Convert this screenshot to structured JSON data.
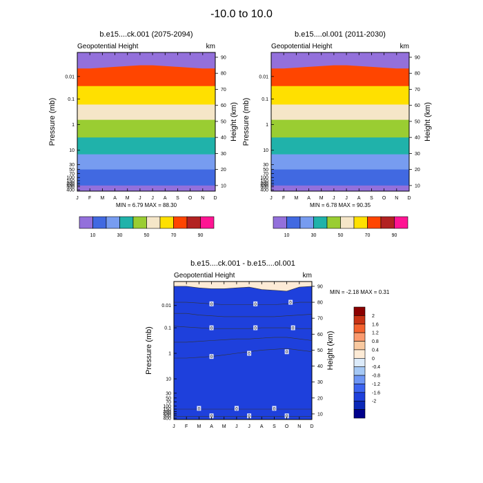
{
  "page_title": "-10.0 to  10.0",
  "chart_data": [
    {
      "type": "contour",
      "title": "b.e15....ck.001 (2075-2094)",
      "subtitle_left": "Geopotential Height",
      "subtitle_right": "km",
      "xlabel": "",
      "ylabel": "Pressure (mb)",
      "ylabel_right": "Height (km)",
      "x_tick_labels": [
        "J",
        "F",
        "M",
        "A",
        "M",
        "J",
        "J",
        "A",
        "S",
        "O",
        "N",
        "D"
      ],
      "y_ticks_pressure": [
        {
          "p": "0.01",
          "z": 78
        },
        {
          "p": "0.1",
          "z": 64
        },
        {
          "p": "1",
          "z": 48
        },
        {
          "p": "10",
          "z": 32
        },
        {
          "p": "30",
          "z": 23
        },
        {
          "p": "50",
          "z": 20
        },
        {
          "p": "70",
          "z": 17.5
        },
        {
          "p": "100",
          "z": 15
        },
        {
          "p": "150",
          "z": 13
        },
        {
          "p": "200",
          "z": 11.5
        },
        {
          "p": "250",
          "z": 10.3
        },
        {
          "p": "300",
          "z": 9.2
        },
        {
          "p": "400",
          "z": 7.3
        }
      ],
      "y_ticks_height": [
        10,
        20,
        30,
        40,
        50,
        60,
        70,
        80,
        90
      ],
      "ylim_km": [
        6.5,
        93
      ],
      "levels": [
        10,
        20,
        30,
        40,
        50,
        60,
        70,
        80,
        90
      ],
      "colors": [
        "#9370DB",
        "#4169E1",
        "#779CF0",
        "#20B2AA",
        "#9ACD32",
        "#F5E6C8",
        "#FFE000",
        "#FF4500",
        "#B22222",
        "#FF1493"
      ],
      "band_boundaries_km": {
        "x_months": [
          1,
          2,
          3,
          4,
          5,
          6,
          7,
          8,
          9,
          10,
          11,
          12
        ],
        "levels": {
          "10": [
            10,
            10,
            10,
            10,
            10,
            10,
            10,
            10,
            10,
            10,
            10,
            10
          ],
          "20": [
            20,
            20,
            20,
            20,
            20,
            20,
            20,
            20,
            20,
            20,
            20,
            20
          ],
          "30": [
            29.5,
            29.5,
            29.5,
            29.5,
            29.5,
            29.5,
            29.5,
            29.5,
            29.5,
            29.5,
            29.5,
            29.5
          ],
          "40": [
            40,
            40,
            40,
            40,
            40,
            40,
            40,
            40,
            40,
            40,
            40,
            40
          ],
          "50": [
            51,
            51,
            51,
            51,
            51,
            51,
            51,
            51,
            51,
            51,
            51,
            51
          ],
          "60": [
            60.5,
            60.5,
            60.5,
            60.5,
            60.5,
            60.5,
            60.5,
            60.5,
            60.5,
            60.5,
            60.5,
            60.5
          ],
          "70": [
            72,
            72,
            72,
            72,
            72,
            72,
            72,
            72,
            72,
            72,
            72,
            72
          ],
          "80": [
            83,
            83,
            83.5,
            84,
            84.5,
            85,
            85,
            84.5,
            84,
            83.5,
            83,
            83
          ]
        }
      },
      "min_max_text": "MIN =   6.79  MAX =  88.30",
      "colorbar_labels": [
        "10",
        "30",
        "50",
        "70",
        "90"
      ]
    },
    {
      "type": "contour",
      "title": "b.e15....ol.001 (2011-2030)",
      "subtitle_left": "Geopotential Height",
      "subtitle_right": "km",
      "xlabel": "",
      "ylabel": "Pressure (mb)",
      "ylabel_right": "Height (km)",
      "x_tick_labels": [
        "J",
        "F",
        "M",
        "A",
        "M",
        "J",
        "J",
        "A",
        "S",
        "O",
        "N",
        "D"
      ],
      "y_ticks_pressure": [
        {
          "p": "0.01",
          "z": 78
        },
        {
          "p": "0.1",
          "z": 64
        },
        {
          "p": "1",
          "z": 48
        },
        {
          "p": "10",
          "z": 32
        },
        {
          "p": "30",
          "z": 23
        },
        {
          "p": "50",
          "z": 20
        },
        {
          "p": "70",
          "z": 17.5
        },
        {
          "p": "100",
          "z": 15
        },
        {
          "p": "150",
          "z": 13
        },
        {
          "p": "200",
          "z": 11.5
        },
        {
          "p": "250",
          "z": 10.3
        },
        {
          "p": "300",
          "z": 9.2
        },
        {
          "p": "400",
          "z": 7.3
        }
      ],
      "y_ticks_height": [
        10,
        20,
        30,
        40,
        50,
        60,
        70,
        80,
        90
      ],
      "ylim_km": [
        6.5,
        93
      ],
      "levels": [
        10,
        20,
        30,
        40,
        50,
        60,
        70,
        80,
        90
      ],
      "colors": [
        "#9370DB",
        "#4169E1",
        "#779CF0",
        "#20B2AA",
        "#9ACD32",
        "#F5E6C8",
        "#FFE000",
        "#FF4500",
        "#B22222",
        "#FF1493"
      ],
      "band_boundaries_km": {
        "x_months": [
          1,
          2,
          3,
          4,
          5,
          6,
          7,
          8,
          9,
          10,
          11,
          12
        ],
        "levels": {
          "10": [
            10,
            10,
            10,
            10,
            10,
            10,
            10,
            10,
            10,
            10,
            10,
            10
          ],
          "20": [
            20,
            20,
            20,
            20,
            20,
            20,
            20,
            20,
            20,
            20,
            20,
            20
          ],
          "30": [
            29.5,
            29.5,
            29.5,
            29.5,
            29.5,
            29.5,
            29.5,
            29.5,
            29.5,
            29.5,
            29.5,
            29.5
          ],
          "40": [
            40,
            40,
            40,
            40,
            40,
            40,
            40,
            40,
            40,
            40,
            40,
            40
          ],
          "50": [
            51,
            51,
            51,
            51,
            51,
            51,
            51,
            51,
            51,
            51,
            51,
            51
          ],
          "60": [
            60.5,
            60.5,
            60.5,
            60.5,
            60.5,
            60.5,
            60.5,
            60.5,
            60.5,
            60.5,
            60.5,
            60.5
          ],
          "70": [
            72,
            72,
            72,
            72,
            72,
            72,
            72,
            72,
            72,
            72,
            72,
            72
          ],
          "80": [
            83,
            83,
            83.5,
            84,
            84.5,
            85,
            85,
            84.5,
            84,
            83.5,
            83,
            83
          ]
        }
      },
      "min_max_text": "MIN =   6.78  MAX =  90.35",
      "colorbar_labels": [
        "10",
        "30",
        "50",
        "70",
        "90"
      ]
    },
    {
      "type": "contour",
      "title": "b.e15....ck.001 - b.e15....ol.001",
      "subtitle_left": "Geopotential Height",
      "subtitle_right": "km",
      "xlabel": "",
      "ylabel": "Pressure (mb)",
      "ylabel_right": "Height (km)",
      "x_tick_labels": [
        "J",
        "F",
        "M",
        "A",
        "M",
        "J",
        "J",
        "A",
        "S",
        "O",
        "N",
        "D"
      ],
      "y_ticks_pressure": [
        {
          "p": "0.01",
          "z": 78
        },
        {
          "p": "0.1",
          "z": 64
        },
        {
          "p": "1",
          "z": 48
        },
        {
          "p": "10",
          "z": 32
        },
        {
          "p": "30",
          "z": 23
        },
        {
          "p": "50",
          "z": 20
        },
        {
          "p": "70",
          "z": 17.5
        },
        {
          "p": "100",
          "z": 15
        },
        {
          "p": "150",
          "z": 13
        },
        {
          "p": "200",
          "z": 11.5
        },
        {
          "p": "250",
          "z": 10.3
        },
        {
          "p": "300",
          "z": 9.2
        },
        {
          "p": "400",
          "z": 7.3
        }
      ],
      "y_ticks_height": [
        10,
        20,
        30,
        40,
        50,
        60,
        70,
        80,
        90
      ],
      "ylim_km": [
        6.5,
        93
      ],
      "levels": [
        -2,
        -1.6,
        -1.2,
        -0.8,
        -0.4,
        0,
        0.4,
        0.8,
        1.2,
        1.6,
        2
      ],
      "colors": [
        "#00008B",
        "#0A28B8",
        "#1E40DC",
        "#3C64F0",
        "#6E96F5",
        "#A5C8F5",
        "#DCEBFA",
        "#FDEBD6",
        "#F9C9A0",
        "#FB9A6E",
        "#F4622E",
        "#C83214",
        "#8B0000"
      ],
      "band_boundaries_km": {
        "x_months": [
          1,
          2,
          3,
          4,
          5,
          6,
          7,
          8,
          9,
          10,
          11,
          12
        ],
        "levels": {
          "-1.6": [
            90,
            90,
            89,
            88.5,
            88.5,
            89,
            89.5,
            88,
            87.5,
            87,
            89.5,
            90
          ],
          "-1.2": [
            80,
            80,
            79.5,
            79,
            78.5,
            78.5,
            78.5,
            78.5,
            78.5,
            79,
            80,
            80
          ],
          "-0.8": [
            73,
            73,
            72,
            71.5,
            71,
            71,
            71,
            71,
            71,
            71.5,
            72,
            72.5
          ],
          "-0.4": [
            65,
            64.5,
            64,
            63.5,
            63.5,
            63.5,
            63.5,
            64,
            64,
            64,
            63.5,
            63.5
          ],
          "0": [
            55,
            55,
            55.5,
            56,
            56.5,
            57,
            57,
            57.5,
            58,
            58,
            57,
            56
          ],
          "0.4": [
            45,
            45,
            45.5,
            46,
            47,
            48,
            49,
            50,
            50.5,
            51,
            50,
            49
          ],
          "0.8": [
            13,
            13,
            13,
            13,
            13,
            13,
            13,
            13,
            13,
            13,
            13,
            13
          ],
          "1.2": [
            8.5,
            8.5,
            8.5,
            8.5,
            8.5,
            8.5,
            8.5,
            8.5,
            8.5,
            8.5,
            8.5,
            8.5
          ]
        }
      },
      "contour_labels": [
        {
          "text": "0",
          "month": 4,
          "z": 79
        },
        {
          "text": "0",
          "month": 7.5,
          "z": 79
        },
        {
          "text": "0",
          "month": 10.3,
          "z": 80
        },
        {
          "text": "0",
          "month": 4,
          "z": 64
        },
        {
          "text": "0",
          "month": 7.5,
          "z": 64
        },
        {
          "text": "0",
          "month": 10.5,
          "z": 64
        },
        {
          "text": "0",
          "month": 4,
          "z": 46
        },
        {
          "text": "0",
          "month": 7,
          "z": 48
        },
        {
          "text": "0",
          "month": 10,
          "z": 49
        },
        {
          "text": "0",
          "month": 3,
          "z": 13.5
        },
        {
          "text": "0",
          "month": 6,
          "z": 13.5
        },
        {
          "text": "0",
          "month": 9,
          "z": 13.5
        },
        {
          "text": "0",
          "month": 4,
          "z": 8.8
        },
        {
          "text": "0",
          "month": 7,
          "z": 8.8
        },
        {
          "text": "0",
          "month": 10,
          "z": 8.8
        }
      ],
      "min_max_text": "MIN =  -2.18  MAX =   0.31",
      "colorbar_labels": [
        "2",
        "1.6",
        "1.2",
        "0.8",
        "0.4",
        "0",
        "-0.4",
        "-0.8",
        "-1.2",
        "-1.6",
        "-2"
      ]
    }
  ]
}
